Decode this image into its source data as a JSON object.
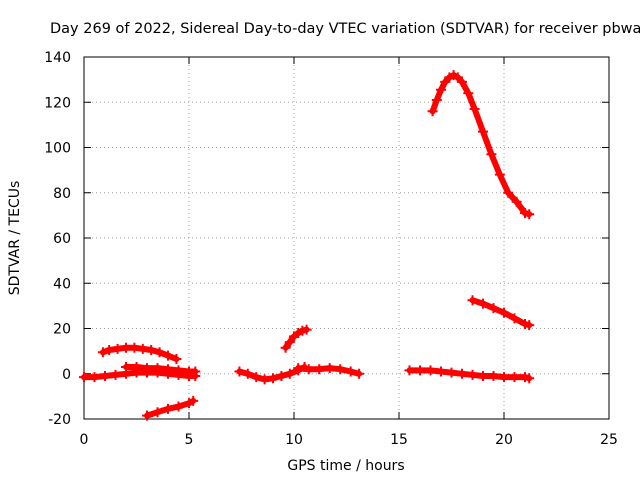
{
  "chart_data": {
    "type": "scatter",
    "title": "Day 269 of 2022, Sidereal Day-to-day VTEC variation (SDTVAR) for receiver pbwa",
    "xlabel": "GPS time / hours",
    "ylabel": "SDTVAR / TECUs",
    "xlim": [
      0,
      25
    ],
    "ylim": [
      -20,
      140
    ],
    "xticks": [
      0,
      5,
      10,
      15,
      20,
      25
    ],
    "yticks": [
      -20,
      0,
      20,
      40,
      60,
      80,
      100,
      120,
      140
    ],
    "grid": true,
    "legend": "none",
    "marker": "plus",
    "color": "#ff0000",
    "series": [
      {
        "name": "arc-1",
        "x": [
          0.0,
          0.5,
          1.0,
          1.5,
          2.0,
          2.5,
          3.0,
          3.5,
          4.0,
          4.5,
          5.0,
          5.3
        ],
        "y": [
          -1.5,
          -1.5,
          -1.0,
          -0.5,
          0.0,
          0.5,
          0.5,
          0.5,
          0.0,
          -0.5,
          -1.0,
          -1.0
        ]
      },
      {
        "name": "arc-2",
        "x": [
          0.9,
          1.2,
          1.6,
          2.0,
          2.4,
          2.8,
          3.2,
          3.6,
          4.0,
          4.4
        ],
        "y": [
          9.5,
          10.5,
          11.0,
          11.5,
          11.5,
          11.0,
          10.5,
          9.5,
          8.0,
          6.5
        ]
      },
      {
        "name": "arc-3",
        "x": [
          2.0,
          2.5,
          3.0,
          3.5,
          4.0,
          4.5,
          5.0,
          5.3
        ],
        "y": [
          3.0,
          3.0,
          2.5,
          2.5,
          2.0,
          1.5,
          1.0,
          1.0
        ]
      },
      {
        "name": "arc-4",
        "x": [
          3.0,
          3.5,
          4.0,
          4.5,
          5.0,
          5.2
        ],
        "y": [
          -18.5,
          -17.0,
          -15.5,
          -14.5,
          -13.0,
          -12.0
        ]
      },
      {
        "name": "arc-5",
        "x": [
          7.4,
          7.8,
          8.2,
          8.6,
          9.0,
          9.4,
          9.8,
          10.2,
          10.5
        ],
        "y": [
          1.0,
          0.0,
          -1.5,
          -2.5,
          -2.0,
          -1.0,
          0.0,
          1.5,
          3.0
        ]
      },
      {
        "name": "arc-6",
        "x": [
          9.6,
          9.8,
          10.0,
          10.2,
          10.4,
          10.6
        ],
        "y": [
          11.5,
          14.0,
          16.5,
          18.0,
          19.0,
          19.5
        ]
      },
      {
        "name": "arc-7",
        "x": [
          10.2,
          10.7,
          11.2,
          11.7,
          12.2,
          12.7,
          13.1
        ],
        "y": [
          2.5,
          2.0,
          2.0,
          2.5,
          2.0,
          1.0,
          0.0
        ]
      },
      {
        "name": "arc-8",
        "x": [
          15.5,
          16.0,
          16.5,
          17.0,
          17.5,
          18.0,
          18.5,
          19.0,
          19.5,
          20.0,
          20.5,
          21.0,
          21.2
        ],
        "y": [
          1.5,
          1.5,
          1.5,
          1.0,
          0.5,
          0.0,
          -0.5,
          -1.0,
          -1.0,
          -1.5,
          -1.5,
          -1.5,
          -2.0
        ]
      },
      {
        "name": "arc-9",
        "x": [
          16.6,
          16.8,
          17.0,
          17.2,
          17.4,
          17.6,
          17.8,
          18.0,
          18.3,
          18.6,
          19.0,
          19.4,
          19.8,
          20.2,
          20.6,
          21.0,
          21.2
        ],
        "y": [
          116.0,
          121.0,
          125.5,
          129.0,
          131.0,
          132.0,
          131.0,
          129.0,
          124.0,
          117.0,
          107.0,
          97.0,
          88.0,
          80.0,
          76.0,
          71.0,
          70.5
        ]
      },
      {
        "name": "arc-10",
        "x": [
          18.5,
          19.0,
          19.5,
          20.0,
          20.5,
          21.0,
          21.2
        ],
        "y": [
          32.5,
          31.0,
          29.0,
          27.0,
          24.5,
          22.0,
          21.5
        ]
      }
    ]
  }
}
